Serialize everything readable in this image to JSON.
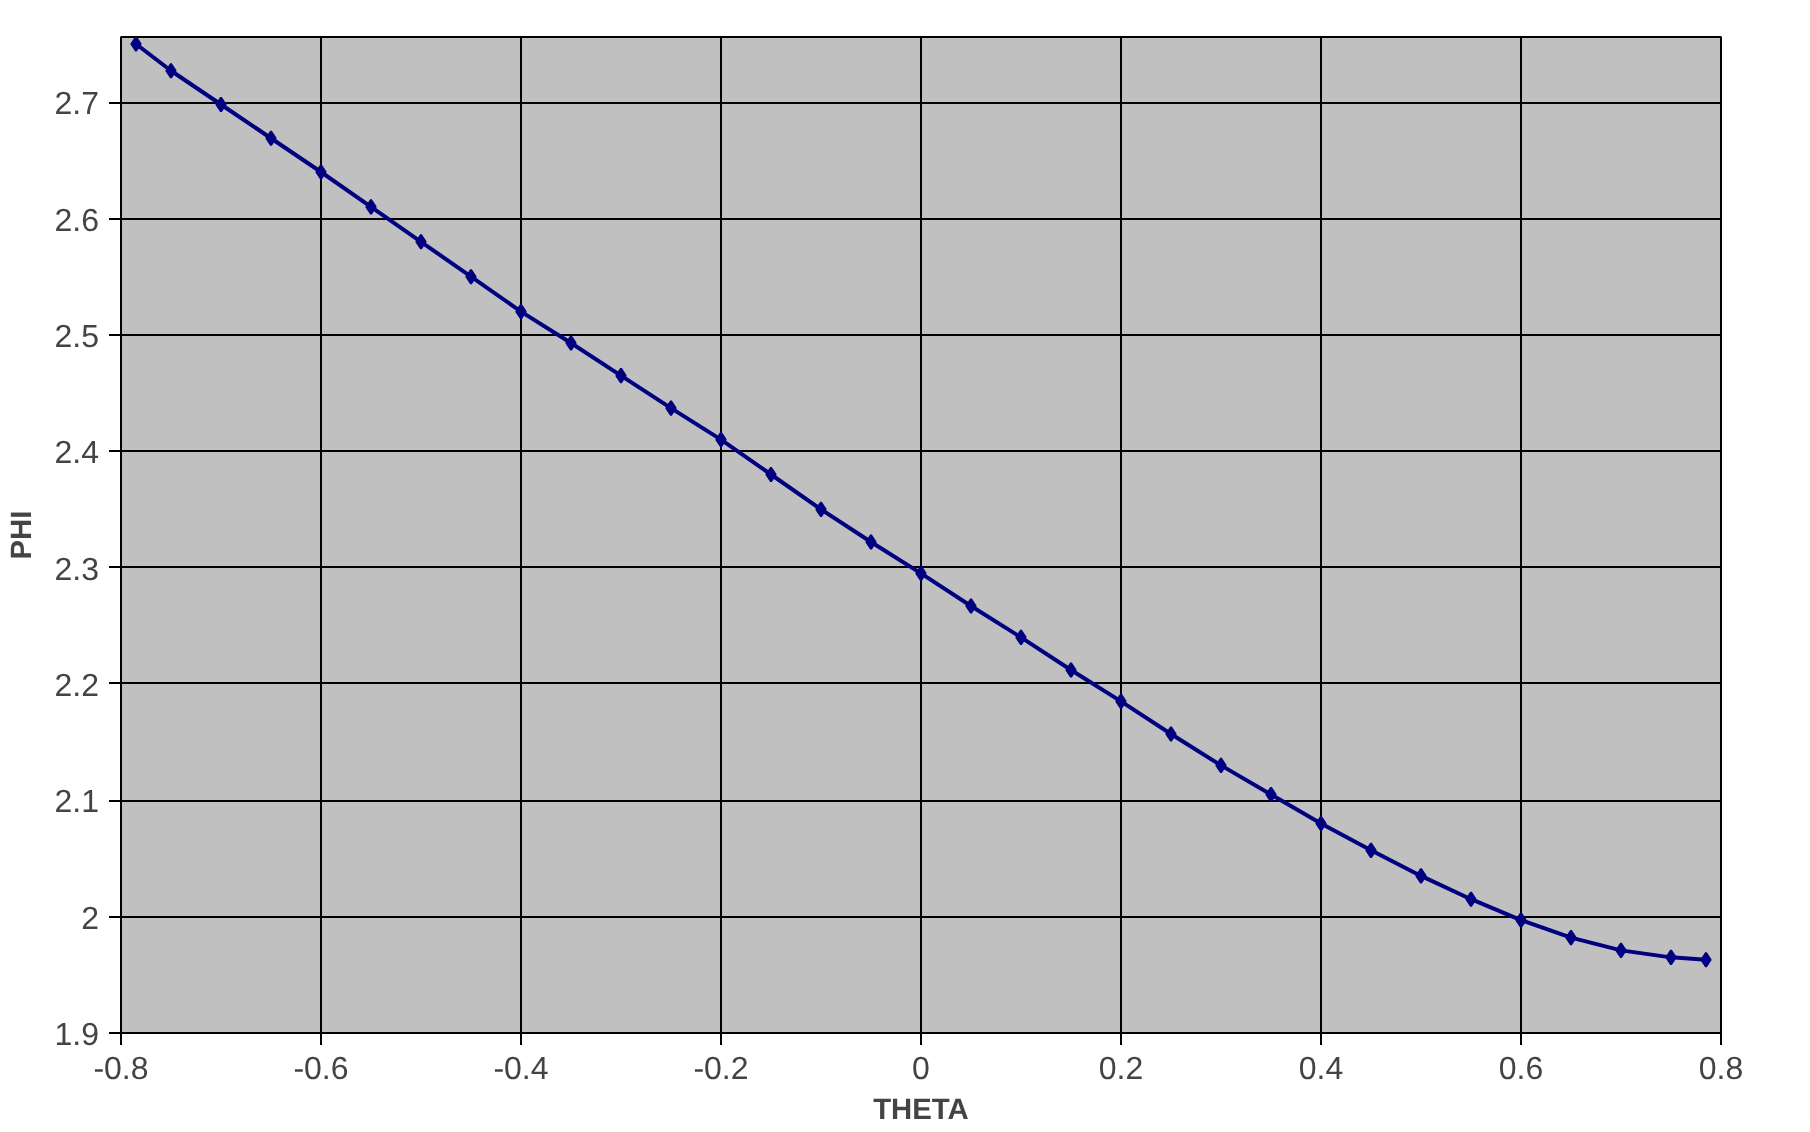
{
  "chart_data": {
    "type": "line",
    "xlabel": "THETA",
    "ylabel": "PHI",
    "xlim": [
      -0.8,
      0.8
    ],
    "xticks": [
      -0.8,
      -0.6,
      -0.4,
      -0.2,
      0,
      0.2,
      0.4,
      0.6,
      0.8
    ],
    "ylim": [
      1.9,
      2.756
    ],
    "yticks": [
      1.9,
      2,
      2.1,
      2.2,
      2.3,
      2.4,
      2.5,
      2.6,
      2.7
    ],
    "grid": true,
    "marker": "diamond",
    "line_style": "solid",
    "x": [
      -0.785,
      -0.75,
      -0.7,
      -0.65,
      -0.6,
      -0.55,
      -0.5,
      -0.45,
      -0.4,
      -0.35,
      -0.3,
      -0.25,
      -0.2,
      -0.15,
      -0.1,
      -0.05,
      0,
      0.05,
      0.1,
      0.15,
      0.2,
      0.25,
      0.3,
      0.35,
      0.4,
      0.45,
      0.5,
      0.55,
      0.6,
      0.65,
      0.7,
      0.75,
      0.785
    ],
    "series": [
      {
        "color": "#000080",
        "values": [
          2.75,
          2.727,
          2.698,
          2.669,
          2.64,
          2.61,
          2.58,
          2.55,
          2.52,
          2.493,
          2.465,
          2.437,
          2.41,
          2.38,
          2.35,
          2.322,
          2.295,
          2.267,
          2.24,
          2.212,
          2.185,
          2.157,
          2.13,
          2.105,
          2.08,
          2.057,
          2.035,
          2.015,
          1.997,
          1.982,
          1.971,
          1.965,
          1.963
        ]
      }
    ]
  }
}
